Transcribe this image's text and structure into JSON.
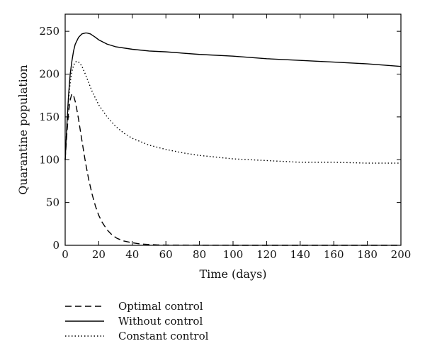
{
  "chart_data": {
    "type": "line",
    "title": "",
    "xlabel": "Time (days)",
    "ylabel": "Quarantine population",
    "xlim": [
      0,
      200
    ],
    "ylim": [
      0,
      270
    ],
    "xticks": [
      "0",
      "20",
      "40",
      "60",
      "80",
      "100",
      "120",
      "140",
      "160",
      "180",
      "200"
    ],
    "yticks": [
      "0",
      "50",
      "100",
      "150",
      "200",
      "250"
    ],
    "grid": false,
    "legend_position": "bottom-left, below plot",
    "series": [
      {
        "name": "Optimal control",
        "style": "dashed",
        "color": "#000000",
        "x": [
          0,
          1,
          2,
          3,
          4,
          5,
          6,
          7,
          8,
          10,
          12,
          14,
          16,
          18,
          20,
          22,
          25,
          28,
          31,
          35,
          40,
          45,
          50,
          55,
          60,
          70,
          80,
          100,
          120,
          140,
          160,
          180,
          200
        ],
        "y": [
          100,
          130,
          155,
          170,
          177,
          175,
          168,
          158,
          147,
          122,
          98,
          77,
          60,
          46,
          35,
          27,
          18,
          12,
          8,
          5,
          3,
          1.5,
          1,
          0.5,
          0.3,
          0.2,
          0.1,
          0,
          0,
          0,
          0,
          0,
          0
        ]
      },
      {
        "name": "Without control",
        "style": "solid",
        "color": "#000000",
        "x": [
          0,
          1,
          2,
          3,
          4,
          5,
          6,
          8,
          10,
          12,
          13,
          15,
          18,
          20,
          25,
          30,
          40,
          50,
          60,
          80,
          100,
          120,
          140,
          160,
          180,
          200
        ],
        "y": [
          100,
          140,
          175,
          200,
          215,
          227,
          235,
          243,
          247,
          248,
          248,
          247,
          243,
          240,
          235,
          232,
          229,
          227,
          226,
          223,
          221,
          218,
          216,
          214,
          212,
          209
        ]
      },
      {
        "name": "Constant control",
        "style": "dotted",
        "color": "#000000",
        "x": [
          0,
          1,
          2,
          3,
          4,
          5,
          6,
          7,
          8,
          9,
          10,
          12,
          14,
          16,
          18,
          20,
          25,
          30,
          35,
          40,
          50,
          60,
          70,
          80,
          100,
          120,
          140,
          160,
          180,
          200
        ],
        "y": [
          100,
          140,
          170,
          190,
          203,
          210,
          214,
          215,
          214,
          212,
          209,
          200,
          190,
          180,
          172,
          164,
          150,
          139,
          131,
          125,
          117,
          112,
          108,
          105,
          101,
          99,
          97,
          97,
          96,
          96
        ]
      }
    ]
  }
}
